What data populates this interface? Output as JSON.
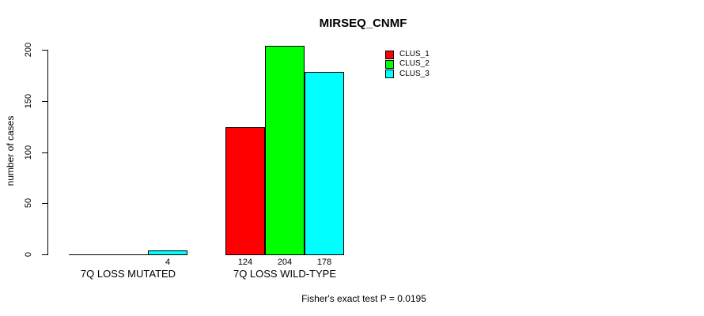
{
  "title": "MIRSEQ_CNMF",
  "chart_data": {
    "type": "bar",
    "title": "MIRSEQ_CNMF",
    "xlabel": "",
    "ylabel": "number of cases",
    "categories": [
      "7Q LOSS MUTATED",
      "7Q LOSS WILD-TYPE"
    ],
    "series": [
      {
        "name": "CLUS_1",
        "color": "#ff0000",
        "values": [
          0,
          124
        ]
      },
      {
        "name": "CLUS_2",
        "color": "#00ff00",
        "values": [
          0,
          204
        ]
      },
      {
        "name": "CLUS_3",
        "color": "#00ffff",
        "values": [
          4,
          178
        ]
      }
    ],
    "ylim": [
      0,
      200
    ],
    "yticks": [
      0,
      50,
      100,
      150,
      200
    ],
    "grid": false,
    "legend_position": "top-right",
    "bar_border_color": "#000000",
    "value_labels_shown_for_nonzero": true,
    "annotation": "Fisher's exact test P = 0.0195"
  }
}
